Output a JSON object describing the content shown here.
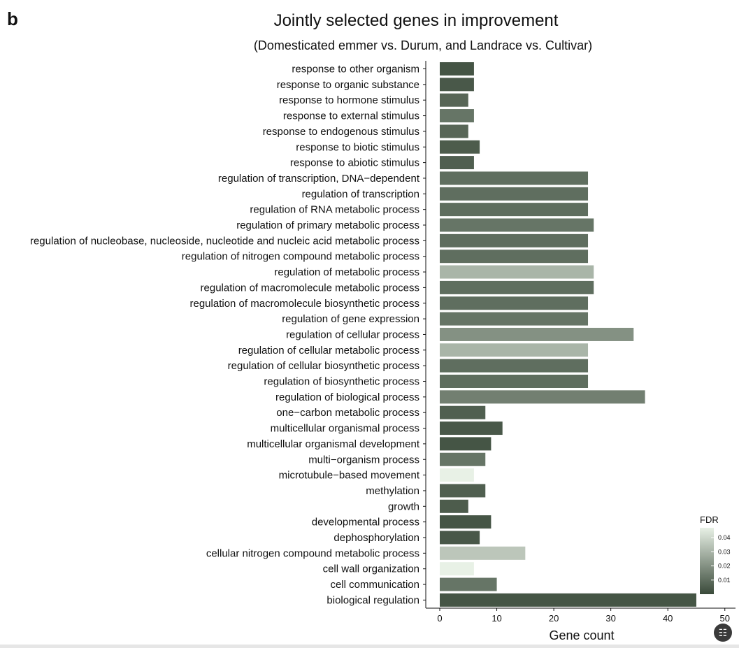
{
  "panel_label": "b",
  "chart_data": {
    "type": "bar",
    "orientation": "horizontal",
    "title": "Jointly selected genes in improvement",
    "subtitle": "(Domesticated emmer vs. Durum, and Landrace vs. Cultivar)",
    "xlabel": "Gene count",
    "ylabel": "",
    "xlim": [
      0,
      50
    ],
    "xticks": [
      0,
      10,
      20,
      30,
      40,
      50
    ],
    "grid": false,
    "legend": {
      "title": "FDR",
      "placement": "right",
      "ticks": [
        "0.04",
        "0.03",
        "0.02",
        "0.01"
      ],
      "tick_values": [
        0.04,
        0.03,
        0.02,
        0.01
      ],
      "range": [
        0.0,
        0.047
      ],
      "color_low": "#3a4a3a",
      "color_high": "#e8f1e6"
    },
    "categories": [
      "response to other organism",
      "response to organic substance",
      "response to hormone stimulus",
      "response to external stimulus",
      "response to endogenous stimulus",
      "response to biotic stimulus",
      "response to abiotic stimulus",
      "regulation of transcription, DNA−dependent",
      "regulation of transcription",
      "regulation of RNA metabolic process",
      "regulation of primary metabolic process",
      "regulation of nucleobase, nucleoside, nucleotide and nucleic acid metabolic process",
      "regulation of nitrogen compound metabolic process",
      "regulation of metabolic process",
      "regulation of macromolecule metabolic process",
      "regulation of macromolecule biosynthetic process",
      "regulation of gene expression",
      "regulation of cellular process",
      "regulation of cellular metabolic process",
      "regulation of cellular biosynthetic process",
      "regulation of biosynthetic process",
      "regulation of biological process",
      "one−carbon metabolic process",
      "multicellular organismal process",
      "multicellular organismal development",
      "multi−organism process",
      "microtubule−based movement",
      "methylation",
      "growth",
      "developmental process",
      "dephosphorylation",
      "cellular nitrogen compound metabolic process",
      "cell wall organization",
      "cell communication",
      "biological regulation"
    ],
    "values": [
      6,
      6,
      5,
      6,
      5,
      7,
      6,
      26,
      26,
      26,
      27,
      26,
      26,
      27,
      27,
      26,
      26,
      34,
      26,
      26,
      26,
      36,
      8,
      11,
      9,
      8,
      6,
      8,
      5,
      9,
      7,
      15,
      6,
      10,
      45
    ],
    "fdr": [
      0.003,
      0.004,
      0.008,
      0.012,
      0.008,
      0.005,
      0.006,
      0.01,
      0.01,
      0.01,
      0.012,
      0.01,
      0.01,
      0.03,
      0.01,
      0.01,
      0.012,
      0.02,
      0.03,
      0.01,
      0.01,
      0.015,
      0.006,
      0.004,
      0.003,
      0.012,
      0.047,
      0.006,
      0.005,
      0.003,
      0.004,
      0.035,
      0.047,
      0.012,
      0.003
    ]
  }
}
